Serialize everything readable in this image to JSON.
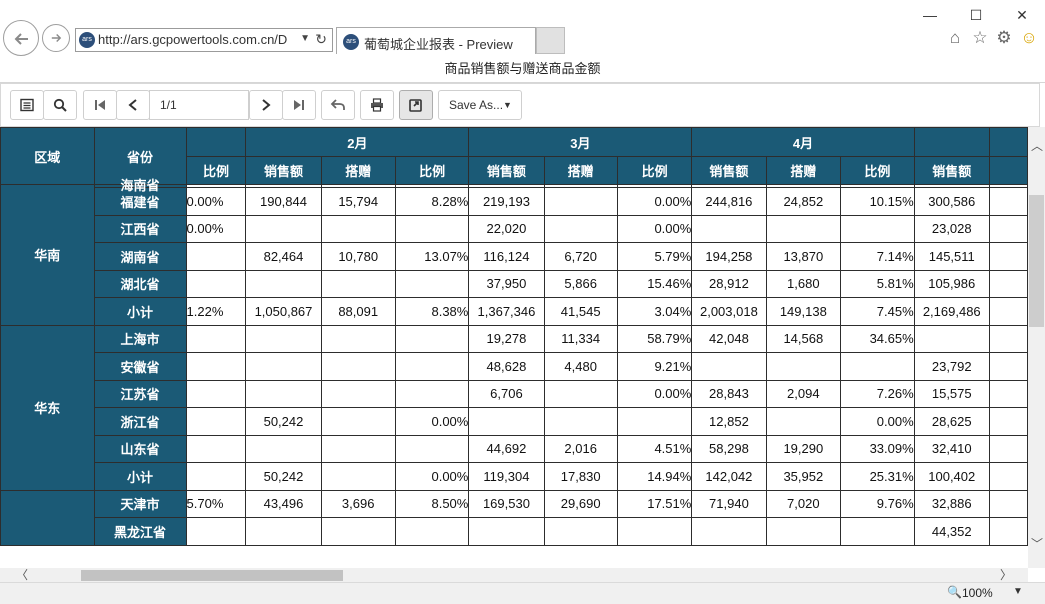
{
  "browser": {
    "url": "http://ars.gcpowertools.com.cn/D",
    "tab_title": "葡萄城企业报表 - Preview",
    "favicon_text": "ars",
    "zoom": "100%"
  },
  "page_title": "商品销售额与赠送商品金额",
  "toolbar": {
    "page_value": "1/1",
    "save_as_label": "Save As...",
    "icons": [
      "toc-icon",
      "search-icon",
      "first-page-icon",
      "prev-page-icon",
      "next-page-icon",
      "last-page-icon",
      "back-icon",
      "print-icon",
      "refresh-icon"
    ]
  },
  "report": {
    "header": {
      "region": "区域",
      "province": "省份",
      "months": [
        "2月",
        "3月",
        "4月"
      ],
      "sub_ratio": "比例",
      "sub_sales": "销售额",
      "sub_gift": "搭赠"
    },
    "groups": [
      {
        "region": "华南",
        "rows": [
          {
            "prov": "海南省",
            "r1": "",
            "s2": "",
            "g2": "",
            "r2": "",
            "s3": "",
            "g3": "",
            "r3": "",
            "s4": "",
            "g4": "",
            "r4": "",
            "s5": ""
          },
          {
            "prov": "福建省",
            "r1": "0.00%",
            "s2": "190,844",
            "g2": "15,794",
            "r2": "8.28%",
            "s3": "219,193",
            "g3": "",
            "r3": "0.00%",
            "s4": "244,816",
            "g4": "24,852",
            "r4": "10.15%",
            "s5": "300,586"
          },
          {
            "prov": "江西省",
            "r1": "0.00%",
            "s2": "",
            "g2": "",
            "r2": "",
            "s3": "22,020",
            "g3": "",
            "r3": "0.00%",
            "s4": "",
            "g4": "",
            "r4": "",
            "s5": "23,028"
          },
          {
            "prov": "湖南省",
            "r1": "",
            "s2": "82,464",
            "g2": "10,780",
            "r2": "13.07%",
            "s3": "116,124",
            "g3": "6,720",
            "r3": "5.79%",
            "s4": "194,258",
            "g4": "13,870",
            "r4": "7.14%",
            "s5": "145,511"
          },
          {
            "prov": "湖北省",
            "r1": "",
            "s2": "",
            "g2": "",
            "r2": "",
            "s3": "37,950",
            "g3": "5,866",
            "r3": "15.46%",
            "s4": "28,912",
            "g4": "1,680",
            "r4": "5.81%",
            "s5": "105,986"
          },
          {
            "prov": "小计",
            "r1": "1.22%",
            "s2": "1,050,867",
            "g2": "88,091",
            "r2": "8.38%",
            "s3": "1,367,346",
            "g3": "41,545",
            "r3": "3.04%",
            "s4": "2,003,018",
            "g4": "149,138",
            "r4": "7.45%",
            "s5": "2,169,486"
          }
        ]
      },
      {
        "region": "华东",
        "rows": [
          {
            "prov": "上海市",
            "r1": "",
            "s2": "",
            "g2": "",
            "r2": "",
            "s3": "19,278",
            "g3": "11,334",
            "r3": "58.79%",
            "s4": "42,048",
            "g4": "14,568",
            "r4": "34.65%",
            "s5": ""
          },
          {
            "prov": "安徽省",
            "r1": "",
            "s2": "",
            "g2": "",
            "r2": "",
            "s3": "48,628",
            "g3": "4,480",
            "r3": "9.21%",
            "s4": "",
            "g4": "",
            "r4": "",
            "s5": "23,792"
          },
          {
            "prov": "江苏省",
            "r1": "",
            "s2": "",
            "g2": "",
            "r2": "",
            "s3": "6,706",
            "g3": "",
            "r3": "0.00%",
            "s4": "28,843",
            "g4": "2,094",
            "r4": "7.26%",
            "s5": "15,575"
          },
          {
            "prov": "浙江省",
            "r1": "",
            "s2": "50,242",
            "g2": "",
            "r2": "0.00%",
            "s3": "",
            "g3": "",
            "r3": "",
            "s4": "12,852",
            "g4": "",
            "r4": "0.00%",
            "s5": "28,625"
          },
          {
            "prov": "山东省",
            "r1": "",
            "s2": "",
            "g2": "",
            "r2": "",
            "s3": "44,692",
            "g3": "2,016",
            "r3": "4.51%",
            "s4": "58,298",
            "g4": "19,290",
            "r4": "33.09%",
            "s5": "32,410"
          },
          {
            "prov": "小计",
            "r1": "",
            "s2": "50,242",
            "g2": "",
            "r2": "0.00%",
            "s3": "119,304",
            "g3": "17,830",
            "r3": "14.94%",
            "s4": "142,042",
            "g4": "35,952",
            "r4": "25.31%",
            "s5": "100,402"
          }
        ]
      },
      {
        "region": "",
        "rows": [
          {
            "prov": "天津市",
            "r1": "5.70%",
            "s2": "43,496",
            "g2": "3,696",
            "r2": "8.50%",
            "s3": "169,530",
            "g3": "29,690",
            "r3": "17.51%",
            "s4": "71,940",
            "g4": "7,020",
            "r4": "9.76%",
            "s5": "32,886"
          },
          {
            "prov": "黑龙江省",
            "r1": "",
            "s2": "",
            "g2": "",
            "r2": "",
            "s3": "",
            "g3": "",
            "r3": "",
            "s4": "",
            "g4": "",
            "r4": "",
            "s5": "44,352"
          }
        ]
      }
    ]
  },
  "chart_data": {
    "type": "table",
    "title": "商品销售额与赠送商品金额",
    "columns": [
      "区域",
      "省份",
      "比例",
      "2月 销售额",
      "2月 搭赠",
      "2月 比例",
      "3月 销售额",
      "3月 搭赠",
      "3月 比例",
      "4月 销售额",
      "4月 搭赠",
      "4月 比例",
      "销售额"
    ],
    "rows": [
      [
        "华南",
        "福建省",
        "0.00%",
        "190,844",
        "15,794",
        "8.28%",
        "219,193",
        "",
        "0.00%",
        "244,816",
        "24,852",
        "10.15%",
        "300,586"
      ],
      [
        "华南",
        "江西省",
        "0.00%",
        "",
        "",
        "",
        "22,020",
        "",
        "0.00%",
        "",
        "",
        "",
        "23,028"
      ],
      [
        "华南",
        "湖南省",
        "",
        "82,464",
        "10,780",
        "13.07%",
        "116,124",
        "6,720",
        "5.79%",
        "194,258",
        "13,870",
        "7.14%",
        "145,511"
      ],
      [
        "华南",
        "湖北省",
        "",
        "",
        "",
        "",
        "37,950",
        "5,866",
        "15.46%",
        "28,912",
        "1,680",
        "5.81%",
        "105,986"
      ],
      [
        "华南",
        "小计",
        "1.22%",
        "1,050,867",
        "88,091",
        "8.38%",
        "1,367,346",
        "41,545",
        "3.04%",
        "2,003,018",
        "149,138",
        "7.45%",
        "2,169,486"
      ],
      [
        "华东",
        "上海市",
        "",
        "",
        "",
        "",
        "19,278",
        "11,334",
        "58.79%",
        "42,048",
        "14,568",
        "34.65%",
        ""
      ],
      [
        "华东",
        "安徽省",
        "",
        "",
        "",
        "",
        "48,628",
        "4,480",
        "9.21%",
        "",
        "",
        "",
        "23,792"
      ],
      [
        "华东",
        "江苏省",
        "",
        "",
        "",
        "",
        "6,706",
        "",
        "0.00%",
        "28,843",
        "2,094",
        "7.26%",
        "15,575"
      ],
      [
        "华东",
        "浙江省",
        "",
        "50,242",
        "",
        "0.00%",
        "",
        "",
        "",
        "12,852",
        "",
        "0.00%",
        "28,625"
      ],
      [
        "华东",
        "山东省",
        "",
        "",
        "",
        "",
        "44,692",
        "2,016",
        "4.51%",
        "58,298",
        "19,290",
        "33.09%",
        "32,410"
      ],
      [
        "华东",
        "小计",
        "",
        "50,242",
        "",
        "0.00%",
        "119,304",
        "17,830",
        "14.94%",
        "142,042",
        "35,952",
        "25.31%",
        "100,402"
      ],
      [
        "",
        "天津市",
        "5.70%",
        "43,496",
        "3,696",
        "8.50%",
        "169,530",
        "29,690",
        "17.51%",
        "71,940",
        "7,020",
        "9.76%",
        "32,886"
      ],
      [
        "",
        "黑龙江省",
        "",
        "",
        "",
        "",
        "",
        "",
        "",
        "",
        "",
        "",
        "44,352"
      ]
    ]
  }
}
